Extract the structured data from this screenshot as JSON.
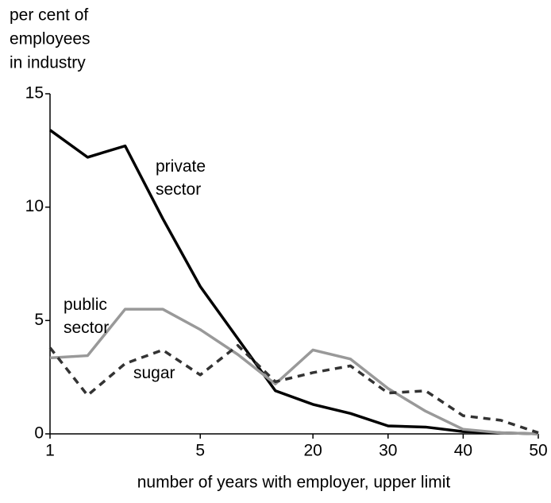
{
  "chart_data": {
    "type": "line",
    "ylabel": [
      "per cent of",
      "employees",
      "in industry"
    ],
    "xlabel": "number of years with employer, upper limit",
    "categories": [
      "1",
      null,
      null,
      null,
      "5",
      null,
      null,
      "20",
      null,
      "30",
      null,
      "40",
      null,
      "50"
    ],
    "ylim": [
      0,
      15
    ],
    "yticks": [
      0,
      5,
      10,
      15
    ],
    "series": [
      {
        "name": "private sector",
        "color": "#000000",
        "dash": false,
        "values": [
          13.4,
          12.2,
          12.7,
          9.5,
          6.5,
          4.2,
          1.9,
          1.3,
          0.9,
          0.35,
          0.3,
          0.1,
          0.05,
          0
        ]
      },
      {
        "name": "public sector",
        "color": "#999999",
        "dash": false,
        "values": [
          3.35,
          3.45,
          5.5,
          5.5,
          4.6,
          3.5,
          2.2,
          3.7,
          3.3,
          2.0,
          1.0,
          0.2,
          0.05,
          0
        ]
      },
      {
        "name": "sugar",
        "color": "#333333",
        "dash": true,
        "values": [
          3.8,
          1.7,
          3.1,
          3.7,
          2.6,
          3.9,
          2.3,
          2.7,
          3.0,
          1.8,
          1.9,
          0.8,
          0.6,
          0.05
        ]
      }
    ]
  }
}
